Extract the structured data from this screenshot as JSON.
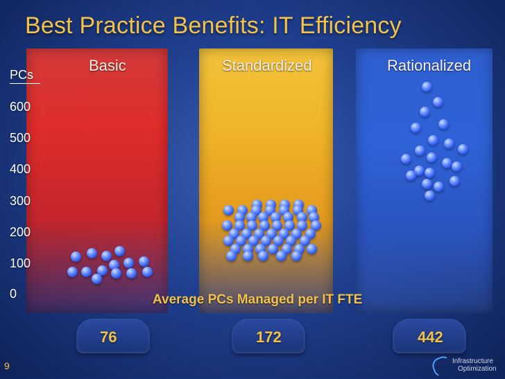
{
  "slide": {
    "title": "Best Practice Benefits: IT Efficiency",
    "number": "9",
    "subtitle": "Average PCs Managed per IT FTE",
    "brand": {
      "line1": "Infrastructure",
      "line2": "Optimization"
    },
    "colors": {
      "basic": "#d33a3a",
      "standardized": "#f0b52a",
      "rationalized": "#2f5fd0",
      "accent": "#f2c24a",
      "ball": "#2b54e8"
    }
  },
  "chart_data": {
    "type": "bar",
    "title": "Best Practice Benefits: IT Efficiency",
    "ylabel": "PCs",
    "ylim": [
      0,
      700
    ],
    "y_ticks": [
      "600",
      "500",
      "400",
      "300",
      "200",
      "100",
      "0"
    ],
    "categories": [
      "Basic",
      "Standardized",
      "Rationalized"
    ],
    "values": [
      "76",
      "172",
      "442"
    ],
    "series_label": "Average PCs Managed per IT FTE",
    "grid": false
  }
}
